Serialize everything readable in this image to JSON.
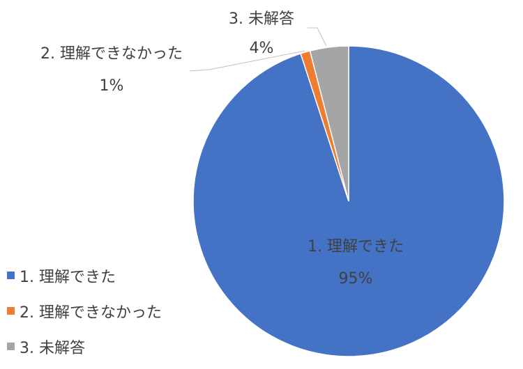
{
  "chart_data": {
    "type": "pie",
    "title": "",
    "categories": [
      "1. 理解できた",
      "2. 理解できなかった",
      "3. 未解答"
    ],
    "values": [
      95,
      1,
      4
    ],
    "value_labels": [
      "95%",
      "1%",
      "4%"
    ],
    "colors": [
      "#4472C4",
      "#ED7D31",
      "#A5A5A5"
    ],
    "start_angle_deg": 0,
    "direction": "clockwise",
    "legend_position": "left-bottom"
  }
}
